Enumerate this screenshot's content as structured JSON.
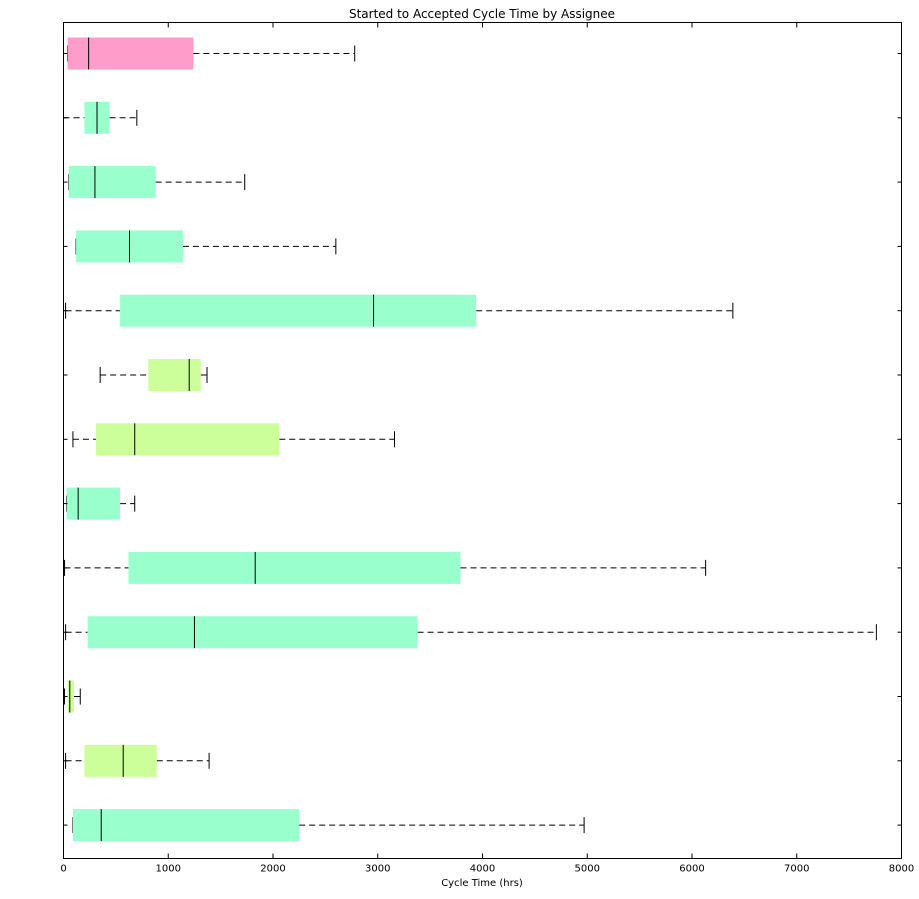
{
  "chart_data": {
    "type": "boxplot",
    "orientation": "horizontal",
    "title": "Started to Accepted Cycle Time by Assignee",
    "xlabel": "Cycle Time (hrs)",
    "ylabel": "",
    "xlim": [
      0,
      8000
    ],
    "xticks": [
      0,
      1000,
      2000,
      3000,
      4000,
      5000,
      6000,
      7000,
      8000
    ],
    "grid": false,
    "colors": {
      "pink": "#ff9dca",
      "mint": "#99ffcc",
      "lime": "#ccff99"
    },
    "boxes": [
      {
        "whisker_low": 40,
        "q1": 40,
        "median": 240,
        "q3": 1240,
        "whisker_high": 2780,
        "color": "#ff9dca"
      },
      {
        "whisker_low": 0,
        "q1": 200,
        "median": 320,
        "q3": 440,
        "whisker_high": 700,
        "color": "#99ffcc"
      },
      {
        "whisker_low": 50,
        "q1": 50,
        "median": 300,
        "q3": 880,
        "whisker_high": 1730,
        "color": "#99ffcc"
      },
      {
        "whisker_low": 120,
        "q1": 120,
        "median": 630,
        "q3": 1140,
        "whisker_high": 2600,
        "color": "#99ffcc"
      },
      {
        "whisker_low": 20,
        "q1": 540,
        "median": 2960,
        "q3": 3940,
        "whisker_high": 6390,
        "color": "#99ffcc"
      },
      {
        "whisker_low": 350,
        "q1": 810,
        "median": 1200,
        "q3": 1310,
        "whisker_high": 1370,
        "color": "#ccff99"
      },
      {
        "whisker_low": 90,
        "q1": 310,
        "median": 680,
        "q3": 2060,
        "whisker_high": 3160,
        "color": "#ccff99"
      },
      {
        "whisker_low": 30,
        "q1": 30,
        "median": 140,
        "q3": 540,
        "whisker_high": 680,
        "color": "#99ffcc"
      },
      {
        "whisker_low": 10,
        "q1": 620,
        "median": 1830,
        "q3": 3790,
        "whisker_high": 6130,
        "color": "#99ffcc"
      },
      {
        "whisker_low": 20,
        "q1": 230,
        "median": 1250,
        "q3": 3380,
        "whisker_high": 7760,
        "color": "#99ffcc"
      },
      {
        "whisker_low": 10,
        "q1": 40,
        "median": 60,
        "q3": 100,
        "whisker_high": 160,
        "color": "#ccff99"
      },
      {
        "whisker_low": 20,
        "q1": 200,
        "median": 570,
        "q3": 890,
        "whisker_high": 1390,
        "color": "#ccff99"
      },
      {
        "whisker_low": 90,
        "q1": 90,
        "median": 360,
        "q3": 2250,
        "whisker_high": 4970,
        "color": "#99ffcc"
      }
    ]
  }
}
